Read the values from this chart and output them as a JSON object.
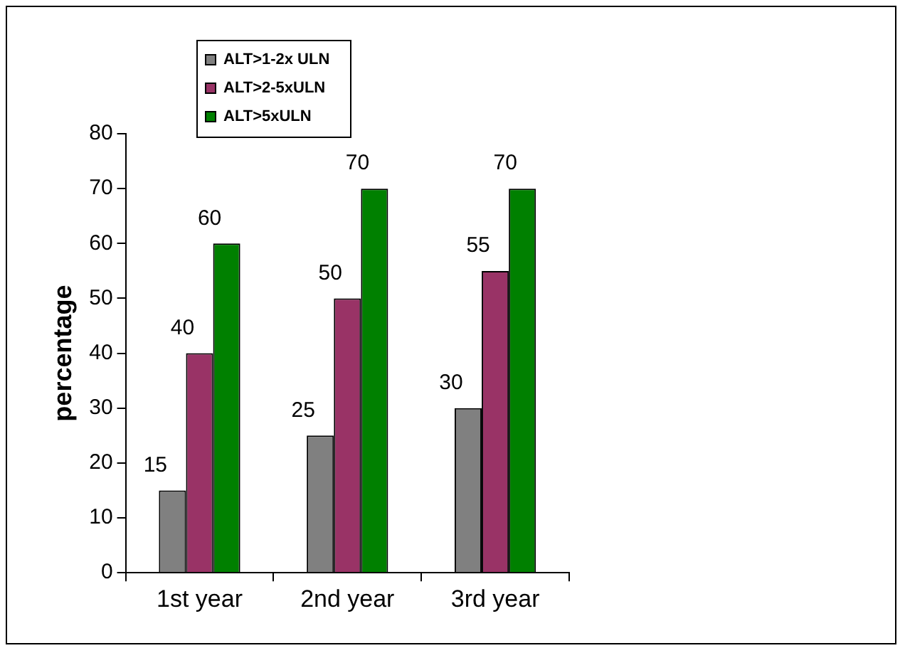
{
  "chart_data": {
    "type": "bar",
    "ylabel": "percentage",
    "categories": [
      "1st year",
      "2nd year",
      "3rd year"
    ],
    "series": [
      {
        "name": "ALT>1-2x ULN",
        "color": "#808080",
        "values": [
          15,
          25,
          30
        ]
      },
      {
        "name": "ALT>2-5xULN",
        "color": "#993366",
        "values": [
          40,
          50,
          55
        ]
      },
      {
        "name": "ALT>5xULN",
        "color": "#008000",
        "values": [
          60,
          70,
          70
        ]
      }
    ],
    "ylim": [
      0,
      80
    ],
    "yticks": [
      0,
      10,
      20,
      30,
      40,
      50,
      60,
      70,
      80
    ],
    "grid": false,
    "legend": "top left",
    "data_labels": true
  }
}
